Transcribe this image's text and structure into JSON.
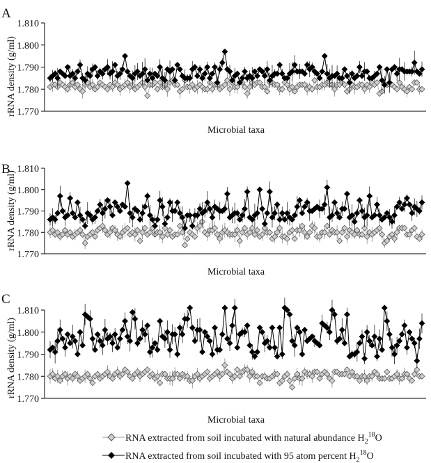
{
  "chart_data": [
    {
      "panel": "A",
      "type": "line",
      "xlabel": "Microbial taxa",
      "ylabel": "rRNA density (g/ml)",
      "ylim": [
        1.77,
        1.81
      ],
      "yticks": [
        "1.770",
        "1.780",
        "1.790",
        "1.800",
        "1.810"
      ],
      "grid": false,
      "n_points": 150,
      "series": [
        {
          "name": "RNA extracted from soil incubated with natural abundance H₂¹⁸O",
          "marker": "open-diamond",
          "values_first_40": [
            1.781,
            1.782,
            1.782,
            1.781,
            1.783,
            1.782,
            1.781,
            1.78,
            1.782,
            1.783,
            1.781,
            1.782,
            1.78,
            1.779,
            1.782,
            1.783,
            1.781,
            1.782,
            1.78,
            1.781,
            1.783,
            1.782,
            1.781,
            1.78,
            1.782,
            1.781,
            1.783,
            1.782,
            1.78,
            1.781,
            1.782,
            1.783,
            1.781,
            1.782,
            1.78,
            1.781,
            1.782,
            1.783,
            1.781,
            1.777
          ]
        },
        {
          "name": "RNA extracted from soil incubated with 95 atom percent H₂¹⁸O",
          "marker": "filled-diamond",
          "values_first_40": [
            1.785,
            1.786,
            1.787,
            1.785,
            1.788,
            1.787,
            1.786,
            1.79,
            1.786,
            1.787,
            1.785,
            1.788,
            1.791,
            1.785,
            1.784,
            1.787,
            1.786,
            1.789,
            1.79,
            1.786,
            1.788,
            1.787,
            1.789,
            1.79,
            1.787,
            1.788,
            1.791,
            1.786,
            1.787,
            1.789,
            1.795,
            1.788,
            1.786,
            1.785,
            1.787,
            1.788,
            1.786,
            1.787,
            1.789,
            1.784
          ]
        }
      ]
    },
    {
      "panel": "B",
      "type": "line",
      "xlabel": "Microbial taxa",
      "ylabel": "rRNA density (g/ml)",
      "ylim": [
        1.77,
        1.81
      ],
      "yticks": [
        "1.770",
        "1.780",
        "1.790",
        "1.800",
        "1.810"
      ],
      "grid": false,
      "n_points": 150,
      "series": [
        {
          "name": "RNA extracted from soil incubated with natural abundance H₂¹⁸O",
          "marker": "open-diamond",
          "values_first_40": [
            1.78,
            1.781,
            1.779,
            1.78,
            1.778,
            1.779,
            1.781,
            1.779,
            1.78,
            1.778,
            1.779,
            1.78,
            1.781,
            1.779,
            1.775,
            1.778,
            1.779,
            1.78,
            1.778,
            1.781,
            1.782,
            1.783,
            1.781,
            1.779,
            1.78,
            1.782,
            1.781,
            1.779,
            1.778,
            1.78,
            1.781,
            1.782,
            1.779,
            1.78,
            1.779,
            1.781,
            1.776,
            1.78,
            1.782,
            1.779
          ]
        },
        {
          "name": "RNA extracted from soil incubated with 95 atom percent H₂¹⁸O",
          "marker": "filled-diamond",
          "values_first_40": [
            1.786,
            1.787,
            1.786,
            1.789,
            1.797,
            1.79,
            1.787,
            1.788,
            1.796,
            1.789,
            1.787,
            1.794,
            1.788,
            1.786,
            1.783,
            1.789,
            1.788,
            1.786,
            1.787,
            1.79,
            1.793,
            1.789,
            1.791,
            1.795,
            1.792,
            1.788,
            1.794,
            1.792,
            1.79,
            1.793,
            1.792,
            1.803,
            1.789,
            1.787,
            1.791,
            1.79,
            1.786,
            1.789,
            1.792,
            1.797
          ]
        }
      ]
    },
    {
      "panel": "C",
      "type": "line",
      "xlabel": "Microbial taxa",
      "ylabel": "rRNA density (g/ml)",
      "ylim": [
        1.77,
        1.81
      ],
      "yticks": [
        "1.770",
        "1.780",
        "1.790",
        "1.800",
        "1.810"
      ],
      "grid": false,
      "n_points": 150,
      "series": [
        {
          "name": "RNA extracted from soil incubated with natural abundance H₂¹⁸O",
          "marker": "open-diamond",
          "values_first_40": [
            1.78,
            1.781,
            1.779,
            1.78,
            1.778,
            1.78,
            1.781,
            1.779,
            1.78,
            1.779,
            1.781,
            1.78,
            1.778,
            1.779,
            1.78,
            1.781,
            1.779,
            1.777,
            1.78,
            1.781,
            1.779,
            1.78,
            1.781,
            1.782,
            1.78,
            1.779,
            1.781,
            1.782,
            1.78,
            1.781,
            1.783,
            1.782,
            1.78,
            1.779,
            1.781,
            1.782,
            1.78,
            1.781,
            1.782,
            1.783
          ]
        },
        {
          "name": "RNA extracted from soil incubated with 95 atom percent H₂¹⁸O",
          "marker": "filled-diamond",
          "values_first_40": [
            1.792,
            1.793,
            1.791,
            1.796,
            1.801,
            1.797,
            1.793,
            1.799,
            1.795,
            1.798,
            1.796,
            1.79,
            1.8,
            1.794,
            1.808,
            1.807,
            1.806,
            1.797,
            1.792,
            1.799,
            1.796,
            1.794,
            1.801,
            1.797,
            1.798,
            1.795,
            1.799,
            1.793,
            1.797,
            1.801,
            1.805,
            1.798,
            1.796,
            1.809,
            1.806,
            1.795,
            1.797,
            1.801,
            1.799,
            1.803
          ]
        }
      ]
    }
  ],
  "legend": {
    "natural": {
      "prefix": "RNA extracted from soil incubated with natural abundance H",
      "sub": "2",
      "sup": "18",
      "suffix": "O"
    },
    "heavy": {
      "prefix": "RNA extracted from soil incubated with 95 atom percent H",
      "sub": "2",
      "sup": "18",
      "suffix": "O"
    }
  },
  "colors": {
    "natural_fill": "#cfcfcf",
    "natural_stroke": "#555555",
    "heavy_fill": "#000000",
    "axis": "#000000",
    "errorbar": "#444444"
  }
}
